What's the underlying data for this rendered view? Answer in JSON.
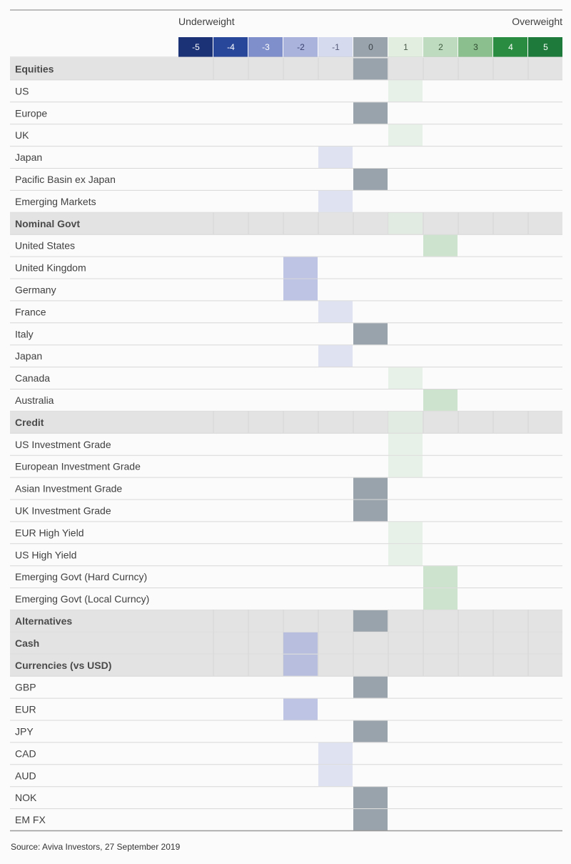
{
  "chart_data": {
    "type": "table",
    "header": {
      "left_label": "Underweight",
      "right_label": "Overweight"
    },
    "scale": [
      -5,
      -4,
      -3,
      -2,
      -1,
      0,
      1,
      2,
      3,
      4,
      5
    ],
    "scale_colors": {
      "-5": "#1b3276",
      "-4": "#28469a",
      "-3": "#7f8fcb",
      "-2": "#aab3dc",
      "-1": "#d6daee",
      "0": "#99a3ab",
      "1": "#e1eee0",
      "2": "#bfdbbf",
      "3": "#8bbf8e",
      "4": "#2a8c40",
      "5": "#1e7a3a"
    },
    "scale_text_colors": {
      "-5": "#ffffff",
      "-4": "#ffffff",
      "-3": "#ffffff",
      "-2": "#3a4170",
      "-1": "#555a78",
      "0": "#3d444a",
      "1": "#4a5a4a",
      "2": "#3f5a40",
      "3": "#2f4a30",
      "4": "#ffffff",
      "5": "#ffffff"
    },
    "rows": [
      {
        "label": "Equities",
        "category": true,
        "value": 0
      },
      {
        "label": "US",
        "category": false,
        "value": 1
      },
      {
        "label": "Europe",
        "category": false,
        "value": 0
      },
      {
        "label": "UK",
        "category": false,
        "value": 1
      },
      {
        "label": "Japan",
        "category": false,
        "value": -1
      },
      {
        "label": "Pacific Basin ex Japan",
        "category": false,
        "value": 0
      },
      {
        "label": "Emerging Markets",
        "category": false,
        "value": -1
      },
      {
        "label": "Nominal Govt",
        "category": true,
        "value": 1
      },
      {
        "label": "United States",
        "category": false,
        "value": 2
      },
      {
        "label": "United Kingdom",
        "category": false,
        "value": -2
      },
      {
        "label": "Germany",
        "category": false,
        "value": -2
      },
      {
        "label": "France",
        "category": false,
        "value": -1
      },
      {
        "label": "Italy",
        "category": false,
        "value": 0
      },
      {
        "label": "Japan",
        "category": false,
        "value": -1
      },
      {
        "label": "Canada",
        "category": false,
        "value": 1
      },
      {
        "label": "Australia",
        "category": false,
        "value": 2
      },
      {
        "label": "Credit",
        "category": true,
        "value": 1
      },
      {
        "label": "US Investment Grade",
        "category": false,
        "value": 1
      },
      {
        "label": "European Investment Grade",
        "category": false,
        "value": 1
      },
      {
        "label": "Asian Investment Grade",
        "category": false,
        "value": 0
      },
      {
        "label": "UK Investment Grade",
        "category": false,
        "value": 0
      },
      {
        "label": "EUR High Yield",
        "category": false,
        "value": 1
      },
      {
        "label": "US High Yield",
        "category": false,
        "value": 1
      },
      {
        "label": "Emerging Govt (Hard Curncy)",
        "category": false,
        "value": 2
      },
      {
        "label": "Emerging Govt (Local Curncy)",
        "category": false,
        "value": 2
      },
      {
        "label": "Alternatives",
        "category": true,
        "value": 0
      },
      {
        "label": "Cash",
        "category": true,
        "value": -2
      },
      {
        "label": "Currencies (vs USD)",
        "category": true,
        "value": -2
      },
      {
        "label": "GBP",
        "category": false,
        "value": 0
      },
      {
        "label": "EUR",
        "category": false,
        "value": -2
      },
      {
        "label": "JPY",
        "category": false,
        "value": 0
      },
      {
        "label": "CAD",
        "category": false,
        "value": -1
      },
      {
        "label": "AUD",
        "category": false,
        "value": -1
      },
      {
        "label": "NOK",
        "category": false,
        "value": 0
      },
      {
        "label": "EM FX",
        "category": false,
        "value": 0
      }
    ]
  },
  "source": "Source: Aviva Investors, 27 September 2019"
}
